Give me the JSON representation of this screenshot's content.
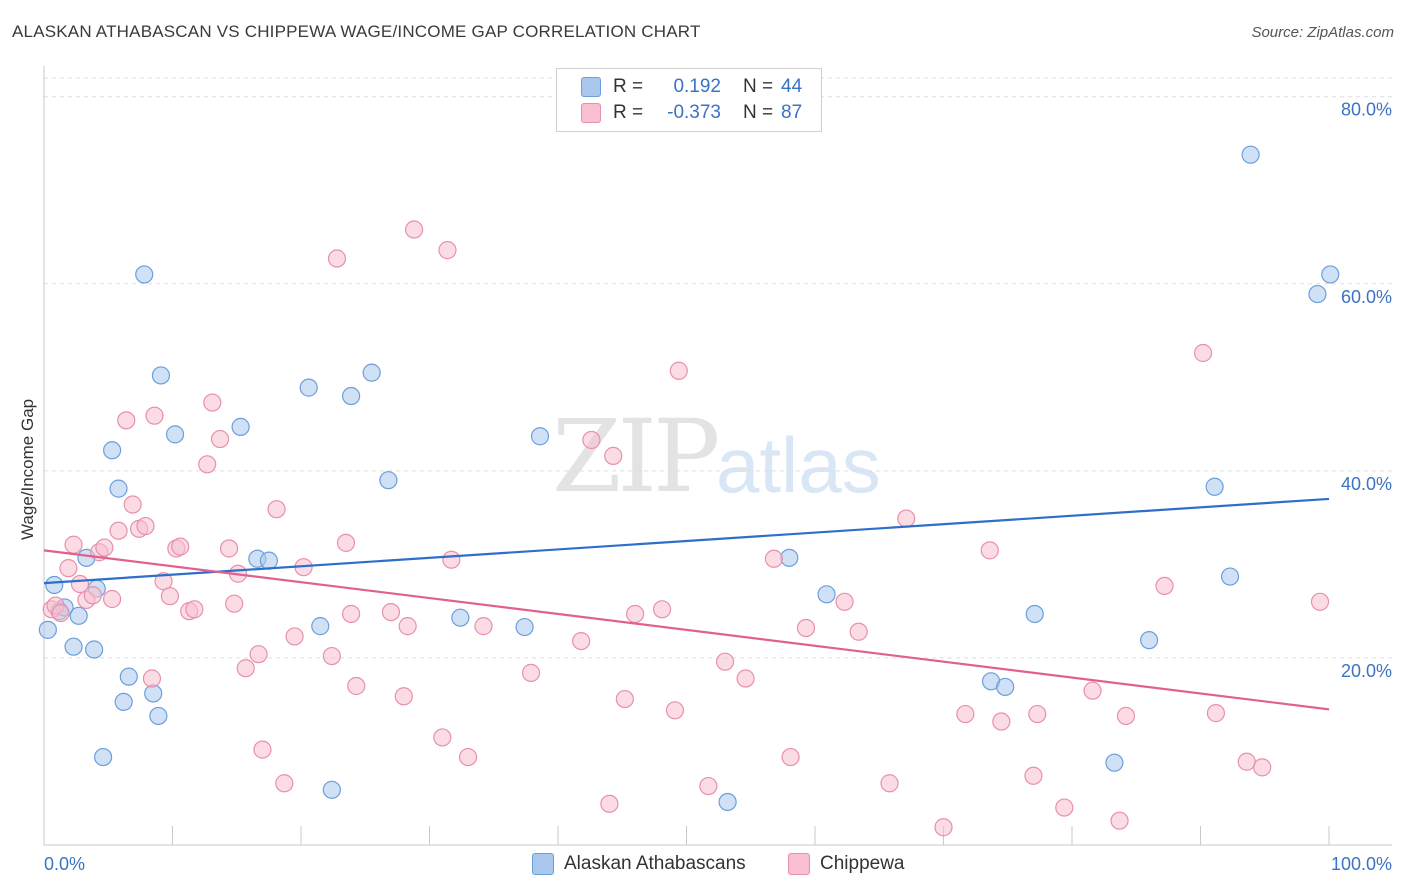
{
  "header": {
    "title": "ALASKAN ATHABASCAN VS CHIPPEWA WAGE/INCOME GAP CORRELATION CHART",
    "source": "Source: ZipAtlas.com"
  },
  "watermark": {
    "zip": "ZIP",
    "atlas": "atlas"
  },
  "legend": {
    "rows": [
      {
        "r_label": "R =",
        "r_value": "0.192",
        "n_label": "N =",
        "n_value": "44",
        "color": "#aac8ee",
        "border": "#6a9fdc"
      },
      {
        "r_label": "R =",
        "r_value": "-0.373",
        "n_label": "N =",
        "n_value": "87",
        "color": "#f7bfd0",
        "border": "#e890ab"
      }
    ]
  },
  "bottom_legend": {
    "items": [
      {
        "label": "Alaskan Athabascans",
        "color": "#aac8ee",
        "border": "#6a9fdc"
      },
      {
        "label": "Chippewa",
        "color": "#f7bfd0",
        "border": "#e890ab"
      }
    ]
  },
  "chart_data": {
    "type": "scatter",
    "title": "ALASKAN ATHABASCAN VS CHIPPEWA WAGE/INCOME GAP CORRELATION CHART",
    "xlabel": "",
    "ylabel": "Wage/Income Gap",
    "xlim": [
      0,
      100
    ],
    "ylim": [
      0,
      82
    ],
    "x_tick_labels": [
      "0.0%",
      "100.0%"
    ],
    "y_ticks": [
      20,
      40,
      60,
      80
    ],
    "y_tick_labels": [
      "20.0%",
      "40.0%",
      "60.0%",
      "80.0%"
    ],
    "grid": true,
    "series": [
      {
        "name": "Alaskan Athabascans",
        "color": "#aac8ee",
        "stroke": "#6a9fdc",
        "line_color": "#2e6fc9",
        "trend": {
          "x": [
            0,
            100
          ],
          "y": [
            28.0,
            37.0
          ]
        },
        "points": [
          [
            0.3,
            23.0
          ],
          [
            0.8,
            27.8
          ],
          [
            1.2,
            25.0
          ],
          [
            1.6,
            25.4
          ],
          [
            2.3,
            21.2
          ],
          [
            2.7,
            24.5
          ],
          [
            3.3,
            30.7
          ],
          [
            3.9,
            20.9
          ],
          [
            4.1,
            27.4
          ],
          [
            4.6,
            9.4
          ],
          [
            5.3,
            42.2
          ],
          [
            5.8,
            38.1
          ],
          [
            6.2,
            15.3
          ],
          [
            6.6,
            18.0
          ],
          [
            7.8,
            61.0
          ],
          [
            8.5,
            16.2
          ],
          [
            8.9,
            13.8
          ],
          [
            9.1,
            50.2
          ],
          [
            10.2,
            43.9
          ],
          [
            15.3,
            44.7
          ],
          [
            16.6,
            30.6
          ],
          [
            17.5,
            30.4
          ],
          [
            20.6,
            48.9
          ],
          [
            21.5,
            23.4
          ],
          [
            22.4,
            5.9
          ],
          [
            23.9,
            48.0
          ],
          [
            25.5,
            50.5
          ],
          [
            26.8,
            39.0
          ],
          [
            32.4,
            24.3
          ],
          [
            37.4,
            23.3
          ],
          [
            38.6,
            43.7
          ],
          [
            53.2,
            4.6
          ],
          [
            58.0,
            30.7
          ],
          [
            60.9,
            26.8
          ],
          [
            73.7,
            17.5
          ],
          [
            74.8,
            16.9
          ],
          [
            77.1,
            24.7
          ],
          [
            83.3,
            8.8
          ],
          [
            86.0,
            21.9
          ],
          [
            91.1,
            38.3
          ],
          [
            92.3,
            28.7
          ],
          [
            93.9,
            73.8
          ],
          [
            99.1,
            58.9
          ],
          [
            100.1,
            61.0
          ]
        ]
      },
      {
        "name": "Chippewa",
        "color": "#f7bfd0",
        "stroke": "#e890ab",
        "line_color": "#e0608e",
        "trend": {
          "x": [
            0,
            100
          ],
          "y": [
            31.5,
            14.5
          ]
        },
        "points": [
          [
            0.6,
            25.2
          ],
          [
            0.9,
            25.6
          ],
          [
            1.3,
            24.8
          ],
          [
            1.9,
            29.6
          ],
          [
            2.3,
            32.1
          ],
          [
            2.8,
            27.9
          ],
          [
            3.3,
            26.2
          ],
          [
            3.8,
            26.7
          ],
          [
            4.3,
            31.3
          ],
          [
            4.7,
            31.8
          ],
          [
            5.3,
            26.3
          ],
          [
            5.8,
            33.6
          ],
          [
            6.4,
            45.4
          ],
          [
            6.9,
            36.4
          ],
          [
            7.4,
            33.8
          ],
          [
            7.9,
            34.1
          ],
          [
            8.4,
            17.8
          ],
          [
            8.6,
            45.9
          ],
          [
            9.3,
            28.2
          ],
          [
            9.8,
            26.6
          ],
          [
            10.3,
            31.7
          ],
          [
            10.6,
            31.9
          ],
          [
            11.3,
            25.0
          ],
          [
            11.7,
            25.2
          ],
          [
            12.7,
            40.7
          ],
          [
            13.1,
            47.3
          ],
          [
            13.7,
            43.4
          ],
          [
            14.4,
            31.7
          ],
          [
            14.8,
            25.8
          ],
          [
            15.1,
            29.0
          ],
          [
            15.7,
            18.9
          ],
          [
            16.7,
            20.4
          ],
          [
            17.0,
            10.2
          ],
          [
            18.1,
            35.9
          ],
          [
            18.7,
            6.6
          ],
          [
            19.5,
            22.3
          ],
          [
            20.2,
            29.7
          ],
          [
            22.4,
            20.2
          ],
          [
            22.8,
            62.7
          ],
          [
            23.5,
            32.3
          ],
          [
            23.9,
            24.7
          ],
          [
            24.3,
            17.0
          ],
          [
            27.0,
            24.9
          ],
          [
            28.0,
            15.9
          ],
          [
            28.3,
            23.4
          ],
          [
            28.8,
            65.8
          ],
          [
            31.0,
            11.5
          ],
          [
            31.4,
            63.6
          ],
          [
            31.7,
            30.5
          ],
          [
            33.0,
            9.4
          ],
          [
            34.2,
            23.4
          ],
          [
            37.9,
            18.4
          ],
          [
            41.8,
            21.8
          ],
          [
            42.6,
            43.3
          ],
          [
            44.0,
            4.4
          ],
          [
            44.3,
            41.6
          ],
          [
            45.2,
            15.6
          ],
          [
            46.0,
            24.7
          ],
          [
            48.1,
            25.2
          ],
          [
            49.1,
            14.4
          ],
          [
            49.4,
            50.7
          ],
          [
            51.7,
            6.3
          ],
          [
            53.0,
            19.6
          ],
          [
            54.6,
            17.8
          ],
          [
            56.8,
            30.6
          ],
          [
            58.1,
            9.4
          ],
          [
            59.3,
            23.2
          ],
          [
            62.3,
            26.0
          ],
          [
            63.4,
            22.8
          ],
          [
            65.8,
            6.6
          ],
          [
            67.1,
            34.9
          ],
          [
            70.0,
            1.9
          ],
          [
            71.7,
            14.0
          ],
          [
            73.6,
            31.5
          ],
          [
            74.5,
            13.2
          ],
          [
            77.0,
            7.4
          ],
          [
            77.3,
            14.0
          ],
          [
            79.4,
            4.0
          ],
          [
            81.6,
            16.5
          ],
          [
            83.7,
            2.6
          ],
          [
            84.2,
            13.8
          ],
          [
            87.2,
            27.7
          ],
          [
            91.2,
            14.1
          ],
          [
            90.2,
            52.6
          ],
          [
            93.6,
            8.9
          ],
          [
            94.8,
            8.3
          ],
          [
            99.3,
            26.0
          ]
        ]
      }
    ]
  }
}
